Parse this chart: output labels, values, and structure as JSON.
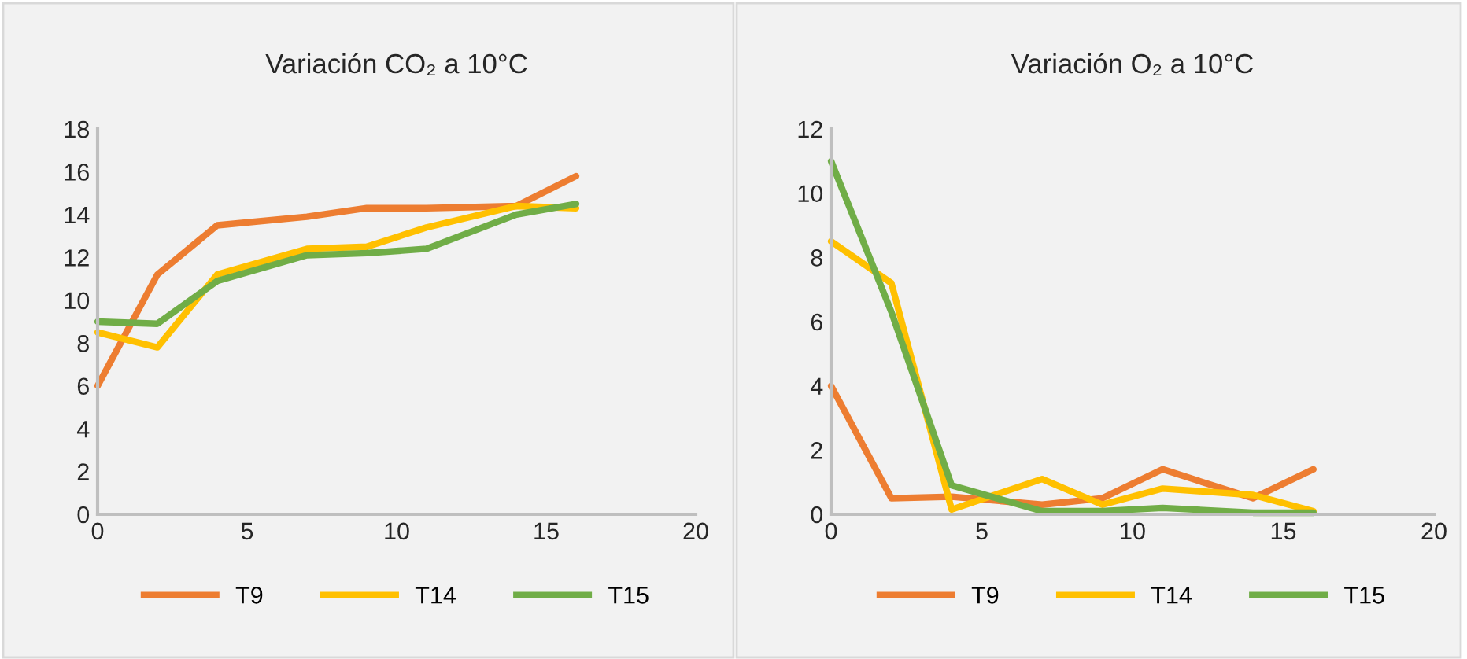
{
  "chart_data": [
    {
      "type": "line",
      "title": "Variación CO₂ a 10°C",
      "x": [
        0,
        2,
        4,
        7,
        9,
        11,
        14,
        16
      ],
      "xlim": [
        0,
        20
      ],
      "xticks": [
        0,
        5,
        10,
        15,
        20
      ],
      "ylim": [
        0,
        18
      ],
      "yticks": [
        0,
        2,
        4,
        6,
        8,
        10,
        12,
        14,
        16,
        18
      ],
      "grid": false,
      "legend": "bottom",
      "marker": "none",
      "line_style": "solid",
      "series": [
        {
          "name": "T9",
          "color": "#ed7d31",
          "values": [
            6.0,
            11.2,
            13.5,
            13.9,
            14.3,
            14.3,
            14.4,
            15.8
          ]
        },
        {
          "name": "T14",
          "color": "#ffc000",
          "values": [
            8.5,
            7.8,
            11.2,
            12.4,
            12.5,
            13.4,
            14.4,
            14.3
          ]
        },
        {
          "name": "T15",
          "color": "#70ad47",
          "values": [
            9.0,
            8.9,
            10.9,
            12.1,
            12.2,
            12.4,
            14.0,
            14.5
          ]
        }
      ]
    },
    {
      "type": "line",
      "title": "Variación O₂ a 10°C",
      "x": [
        0,
        2,
        4,
        7,
        9,
        11,
        14,
        16
      ],
      "xlim": [
        0,
        20
      ],
      "xticks": [
        0,
        5,
        10,
        15,
        20
      ],
      "ylim": [
        0,
        12
      ],
      "yticks": [
        0,
        2,
        4,
        6,
        8,
        10,
        12
      ],
      "grid": false,
      "legend": "bottom",
      "marker": "none",
      "line_style": "solid",
      "series": [
        {
          "name": "T9",
          "color": "#ed7d31",
          "values": [
            4.0,
            0.5,
            0.55,
            0.3,
            0.5,
            1.4,
            0.5,
            1.4
          ]
        },
        {
          "name": "T14",
          "color": "#ffc000",
          "values": [
            8.5,
            7.2,
            0.15,
            1.1,
            0.3,
            0.8,
            0.6,
            0.1
          ]
        },
        {
          "name": "T15",
          "color": "#70ad47",
          "values": [
            11.0,
            6.3,
            0.9,
            0.1,
            0.1,
            0.2,
            0.05,
            0.05
          ]
        }
      ]
    }
  ]
}
